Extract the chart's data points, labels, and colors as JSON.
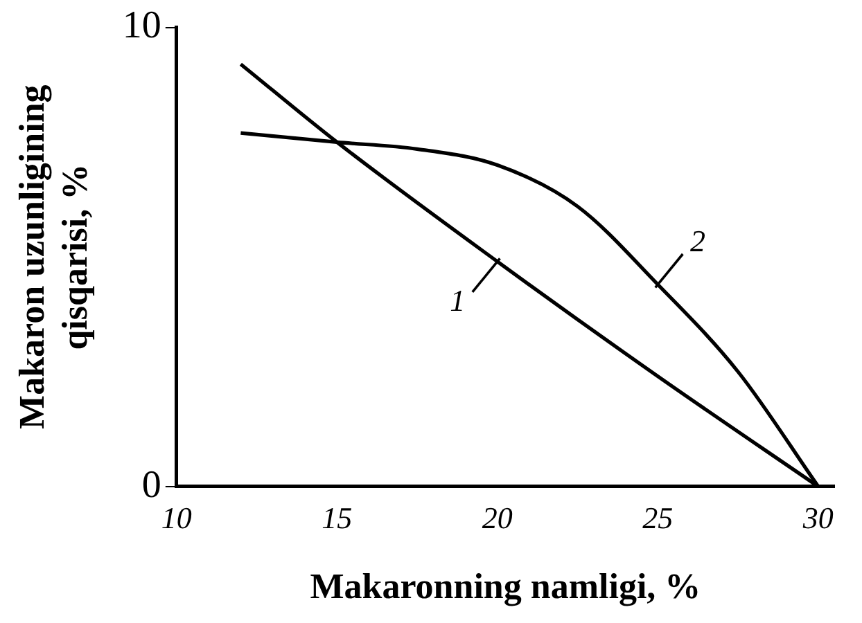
{
  "chart_data": {
    "type": "line",
    "xlabel": "Makaronning namligi, %",
    "ylabel": "Makaron uzunligining qisqarisi, %",
    "xlim": [
      10,
      30.5
    ],
    "ylim": [
      0,
      10
    ],
    "xticks": [
      10,
      15,
      20,
      25,
      30
    ],
    "yticks": [
      0,
      10
    ],
    "grid": false,
    "marker": "none",
    "line_style": "solid",
    "series": [
      {
        "name": "1",
        "color": "#000000",
        "x": [
          12,
          15,
          20,
          25,
          30
        ],
        "values": [
          9.2,
          7.5,
          4.9,
          2.4,
          0
        ]
      },
      {
        "name": "2",
        "color": "#000000",
        "x": [
          12,
          15,
          17.5,
          20,
          22.5,
          25,
          27.5,
          30
        ],
        "values": [
          7.7,
          7.5,
          7.35,
          7.0,
          6.1,
          4.4,
          2.5,
          0
        ]
      }
    ]
  }
}
